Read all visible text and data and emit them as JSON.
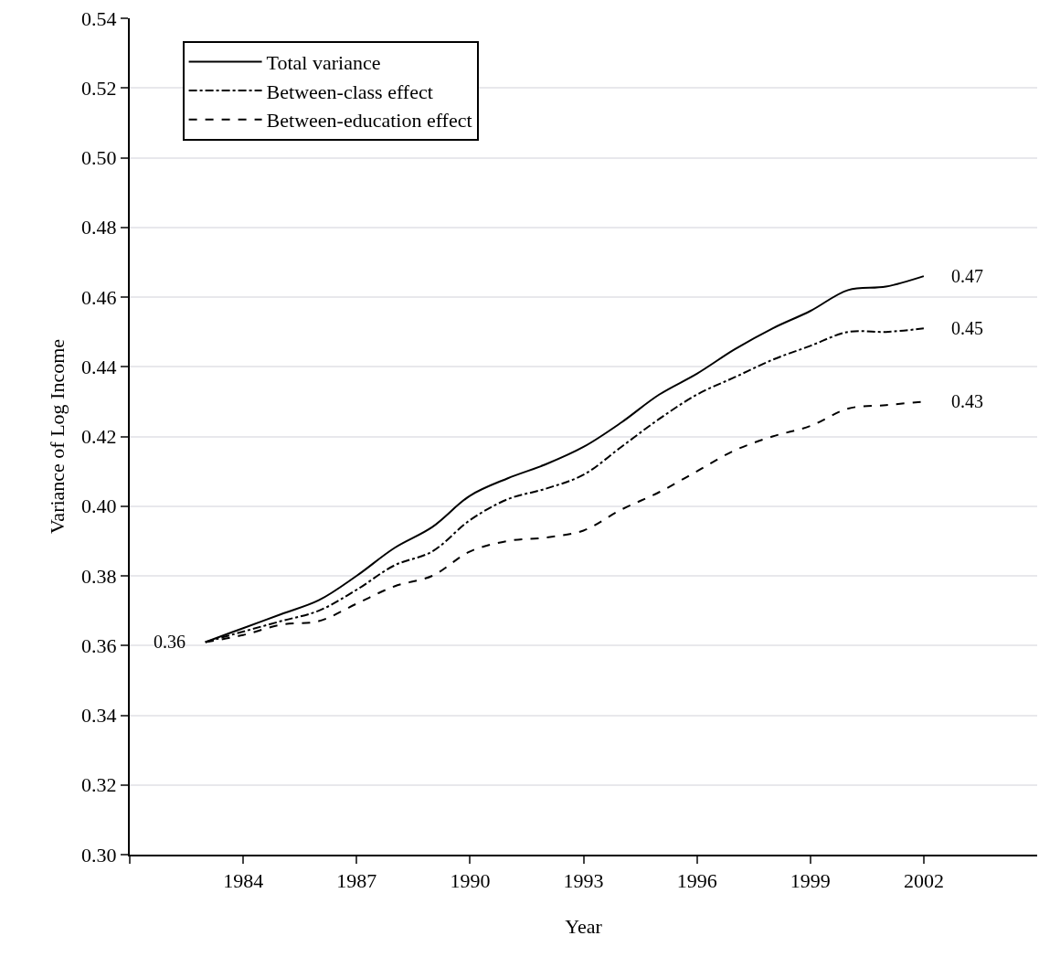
{
  "chart_data": {
    "type": "line",
    "xlabel": "Year",
    "ylabel": "Variance of Log Income",
    "x": [
      1983,
      1984,
      1985,
      1986,
      1987,
      1988,
      1989,
      1990,
      1991,
      1992,
      1993,
      1994,
      1995,
      1996,
      1997,
      1998,
      1999,
      2000,
      2001,
      2002
    ],
    "series": [
      {
        "name": "Total variance",
        "color": "#000000",
        "line_style": "solid",
        "values": [
          0.361,
          0.365,
          0.369,
          0.373,
          0.38,
          0.388,
          0.394,
          0.403,
          0.408,
          0.412,
          0.417,
          0.424,
          0.432,
          0.438,
          0.445,
          0.451,
          0.456,
          0.462,
          0.463,
          0.466
        ],
        "value_labels": [
          "0.36",
          null,
          null,
          null,
          null,
          null,
          null,
          null,
          null,
          null,
          null,
          null,
          null,
          null,
          null,
          null,
          null,
          null,
          null,
          "0.47"
        ]
      },
      {
        "name": "Between-class effect",
        "color": "#000000",
        "line_style": "dashdot",
        "values": [
          0.361,
          0.364,
          0.367,
          0.37,
          0.376,
          0.383,
          0.387,
          0.396,
          0.402,
          0.405,
          0.409,
          0.417,
          0.425,
          0.432,
          0.437,
          0.442,
          0.446,
          0.45,
          0.45,
          0.451
        ],
        "value_labels": [
          null,
          null,
          null,
          null,
          null,
          null,
          null,
          null,
          null,
          null,
          null,
          null,
          null,
          null,
          null,
          null,
          null,
          null,
          null,
          "0.45"
        ]
      },
      {
        "name": "Between-education effect",
        "color": "#000000",
        "line_style": "dashed",
        "values": [
          0.361,
          0.363,
          0.366,
          0.367,
          0.372,
          0.377,
          0.38,
          0.387,
          0.39,
          0.391,
          0.393,
          0.399,
          0.404,
          0.41,
          0.416,
          0.42,
          0.423,
          0.428,
          0.429,
          0.43
        ],
        "value_labels": [
          null,
          null,
          null,
          null,
          null,
          null,
          null,
          null,
          null,
          null,
          null,
          null,
          null,
          null,
          null,
          null,
          null,
          null,
          null,
          "0.43"
        ]
      }
    ],
    "xlim": [
      1981,
      2005
    ],
    "xticks": [
      {
        "value": 1981,
        "label": null
      },
      1984,
      1987,
      1990,
      1993,
      1996,
      1999,
      2002
    ],
    "ylim": [
      0.3,
      0.54
    ],
    "yticks": [
      {
        "value": 0.3,
        "label": "0.30"
      },
      0.32,
      0.34,
      0.36,
      0.38,
      {
        "value": 0.4,
        "label": "0.40"
      },
      0.42,
      0.44,
      0.46,
      0.48,
      {
        "value": 0.5,
        "label": "0.50"
      },
      0.52,
      0.54
    ],
    "grid": "y",
    "legend": "top left",
    "marker": "none"
  }
}
